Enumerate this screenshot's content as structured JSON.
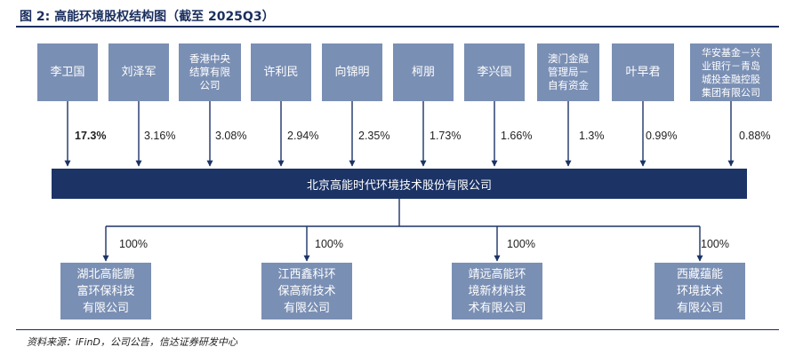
{
  "title": "图 2:  高能环境股权结构图（截至 2025Q3）",
  "shareholders": [
    {
      "name_lines": [
        "李卫国"
      ],
      "pct": "17.3%",
      "bold": true
    },
    {
      "name_lines": [
        "刘泽军"
      ],
      "pct": "3.16%"
    },
    {
      "name_lines": [
        "香港中央",
        "结算有限",
        "公司"
      ],
      "pct": "3.08%"
    },
    {
      "name_lines": [
        "许利民"
      ],
      "pct": "2.94%"
    },
    {
      "name_lines": [
        "向锦明"
      ],
      "pct": "2.35%"
    },
    {
      "name_lines": [
        "柯朋"
      ],
      "pct": "1.73%"
    },
    {
      "name_lines": [
        "李兴国"
      ],
      "pct": "1.66%"
    },
    {
      "name_lines": [
        "澳门金融",
        "管理局－",
        "自有资金"
      ],
      "pct": "1.3%"
    },
    {
      "name_lines": [
        "叶早君"
      ],
      "pct": "0.99%"
    },
    {
      "name_lines": [
        "华安基金－兴",
        "业银行－青岛",
        "城投金融控股",
        "集团有限公司"
      ],
      "pct": "0.88%"
    }
  ],
  "company": "北京高能时代环境技术股份有限公司",
  "subsidiaries": [
    {
      "name_lines": [
        "湖北高能鹏",
        "富环保科技",
        "有限公司"
      ],
      "pct": "100%"
    },
    {
      "name_lines": [
        "江西鑫科环",
        "保高新技术",
        "有限公司"
      ],
      "pct": "100%"
    },
    {
      "name_lines": [
        "靖远高能环",
        "境新材料技",
        "术有限公司"
      ],
      "pct": "100%"
    },
    {
      "name_lines": [
        "西藏蕴能",
        "环境技术",
        "有限公司"
      ],
      "pct": "100%"
    }
  ],
  "source": "资料来源：iFinD，公司公告，信达证券研发中心",
  "colors": {
    "box": "#7a8fb4",
    "main": "#1c3366",
    "title": "#1a2e5e"
  }
}
